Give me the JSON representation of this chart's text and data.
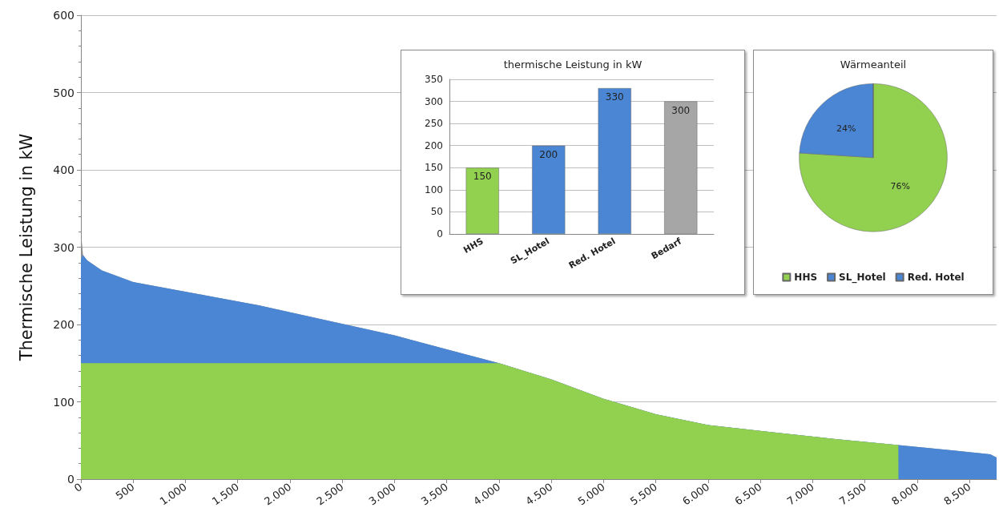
{
  "chart_data": [
    {
      "type": "area",
      "ylabel": "Thermische Leistung in kW",
      "stacked": true,
      "grid": "y",
      "legend": false,
      "marker": "none",
      "x": [
        0,
        20,
        60,
        200,
        500,
        1100,
        1700,
        2400,
        3000,
        3500,
        4000,
        4500,
        5000,
        5500,
        6000,
        6600,
        7200,
        7820,
        7821,
        8350,
        8700,
        8760
      ],
      "series": [
        {
          "color": "#92d050",
          "values": [
            150,
            150,
            150,
            150,
            150,
            150,
            150,
            150,
            150,
            150,
            150,
            129,
            104,
            84,
            70,
            61,
            52,
            44,
            0,
            0,
            0,
            0
          ]
        },
        {
          "color": "#4a86d4",
          "values": [
            135,
            140,
            133,
            120,
            105,
            90,
            75,
            54,
            36,
            18,
            0,
            0,
            0,
            0,
            0,
            0,
            0,
            0,
            44,
            37,
            32,
            28
          ]
        },
        {
          "color": "#8c8c8c",
          "values": [
            35,
            0,
            0,
            0,
            0,
            0,
            0,
            0,
            0,
            0,
            0,
            0,
            0,
            0,
            0,
            0,
            0,
            0,
            0,
            0,
            0,
            0
          ]
        }
      ],
      "xlim": [
        0,
        8760
      ],
      "xticks": [
        0,
        500,
        {
          "value": 1000,
          "label": "1.000"
        },
        {
          "value": 1500,
          "label": "1.500"
        },
        {
          "value": 2000,
          "label": "2.000"
        },
        {
          "value": 2500,
          "label": "2.500"
        },
        {
          "value": 3000,
          "label": "3.000"
        },
        {
          "value": 3500,
          "label": "3.500"
        },
        {
          "value": 4000,
          "label": "4.000"
        },
        {
          "value": 4500,
          "label": "4.500"
        },
        {
          "value": 5000,
          "label": "5.000"
        },
        {
          "value": 5500,
          "label": "5.500"
        },
        {
          "value": 6000,
          "label": "6.000"
        },
        {
          "value": 6500,
          "label": "6.500"
        },
        {
          "value": 7000,
          "label": "7.000"
        },
        {
          "value": 7500,
          "label": "7.500"
        },
        {
          "value": 8000,
          "label": "8.000"
        },
        {
          "value": 8500,
          "label": "8.500"
        }
      ],
      "ylim": [
        0,
        600
      ],
      "yticks": [
        0,
        100,
        200,
        300,
        400,
        500,
        600
      ]
    },
    {
      "type": "bar",
      "title": "thermische Leistung in kW",
      "categories": [
        "HHS",
        "SL_Hotel",
        "Red. Hotel",
        "Bedarf"
      ],
      "values": [
        150,
        200,
        330,
        300
      ],
      "colors": [
        "#92d050",
        "#4a86d4",
        "#4a86d4",
        "#a6a6a6"
      ],
      "data_labels": true,
      "grid": "y",
      "legend": false,
      "ylim": [
        0,
        350
      ],
      "yticks": [
        0,
        50,
        100,
        150,
        200,
        250,
        300,
        350
      ]
    },
    {
      "type": "pie",
      "title": "Wärmeanteil",
      "categories": [
        "HHS",
        "SL_Hotel",
        "Red. Hotel"
      ],
      "values": [
        76,
        24,
        0
      ],
      "colors": [
        "#92d050",
        "#4a86d4",
        "#4a86d4"
      ],
      "value_labels": [
        "76%",
        "24%",
        null
      ],
      "legend": "bottom"
    }
  ]
}
